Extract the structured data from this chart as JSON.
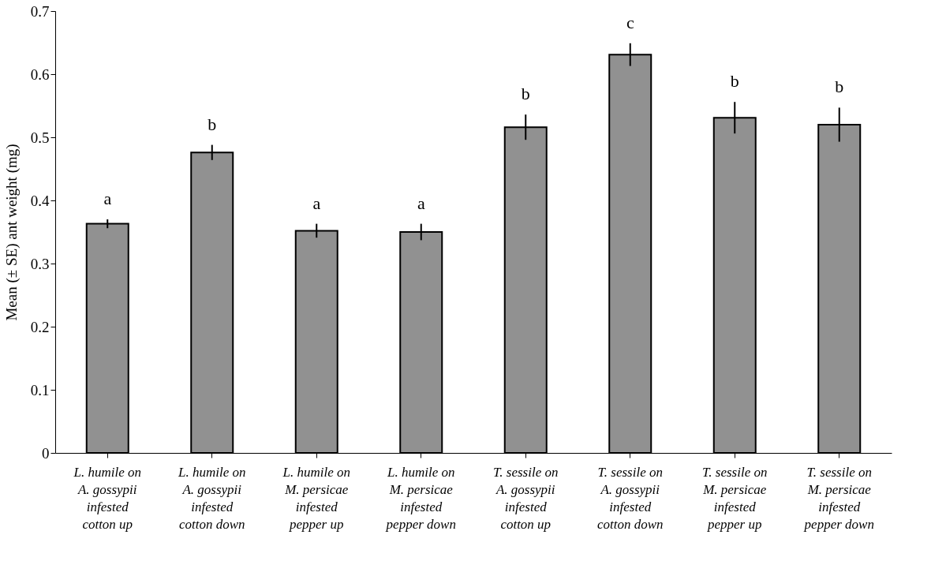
{
  "chart_data": {
    "type": "bar",
    "ylabel": "Mean (± SE) ant weight (mg)",
    "categories": [
      "L. humile on\nA. gossypii\ninfested\ncotton up",
      "L. humile on\nA. gossypii\ninfested\ncotton down",
      "L. humile on\nM. persicae\ninfested\npepper up",
      "L. humile on\nM. persicae\ninfested\npepper down",
      "T. sessile on\nA. gossypii\ninfested\ncotton up",
      "T. sessile on\nA. gossypii\ninfested\ncotton down",
      "T. sessile on\nM. persicae\ninfested\npepper up",
      "T. sessile on\nM. persicae\ninfested\npepper down"
    ],
    "values": [
      0.363,
      0.476,
      0.352,
      0.35,
      0.516,
      0.631,
      0.531,
      0.52
    ],
    "errors": [
      0.007,
      0.012,
      0.011,
      0.013,
      0.02,
      0.018,
      0.025,
      0.027
    ],
    "color": "#919191",
    "ylim": [
      0,
      0.7
    ],
    "yticks": [
      0,
      0.1,
      0.2,
      0.3,
      0.4,
      0.5,
      0.6,
      0.7
    ],
    "grid": false,
    "annotations": [
      "a",
      "b",
      "a",
      "a",
      "b",
      "c",
      "b",
      "b"
    ]
  }
}
